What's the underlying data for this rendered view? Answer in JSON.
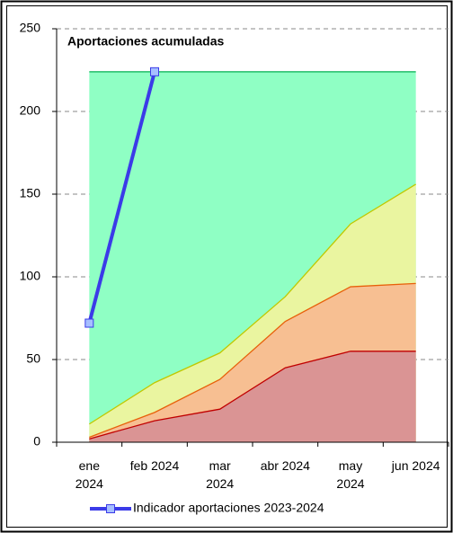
{
  "chart_data": {
    "type": "area",
    "title": "Aportaciones acumuladas",
    "categories": [
      "ene 2024",
      "feb 2024",
      "mar 2024",
      "abr 2024",
      "may 2024",
      "jun 2024"
    ],
    "ylim": [
      0,
      250
    ],
    "yticks": [
      0,
      50,
      100,
      150,
      200,
      250
    ],
    "grid": true,
    "legend": "bottom",
    "series": [
      {
        "type": "area",
        "color": "#8fffc4",
        "line": "#00b050",
        "values": [
          224,
          224,
          224,
          224,
          224,
          224
        ]
      },
      {
        "type": "area",
        "color": "#eaf5a0",
        "line": "#c0c800",
        "values": [
          11,
          36,
          54,
          88,
          132,
          156
        ]
      },
      {
        "type": "area",
        "color": "#f7bf92",
        "line": "#e8600a",
        "values": [
          3,
          18,
          38,
          73,
          94,
          96
        ]
      },
      {
        "type": "area",
        "color": "#da9494",
        "line": "#c00000",
        "values": [
          2,
          13,
          20,
          45,
          55,
          55
        ]
      },
      {
        "type": "line",
        "name": "Indicador aportaciones 2023-2024",
        "color": "#3b3be8",
        "marker": "#a6bfff",
        "values": [
          72,
          224,
          null,
          null,
          null,
          null
        ]
      }
    ]
  }
}
